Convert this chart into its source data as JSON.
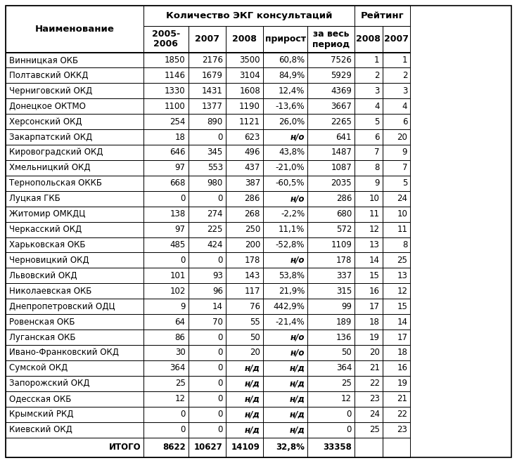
{
  "title_ecg": "Количество ЭКГ консультаций",
  "title_rating": "Рейтинг",
  "col_header_name": "Наименование",
  "col_sub_headers": [
    "2005-\n2006",
    "2007",
    "2008",
    "прирост",
    "за весь\nпериод",
    "2008",
    "2007"
  ],
  "rows": [
    [
      "Винницкая ОКБ",
      "1850",
      "2176",
      "3500",
      "60,8%",
      "7526",
      "1",
      "1"
    ],
    [
      "Полтавский ОККД",
      "1146",
      "1679",
      "3104",
      "84,9%",
      "5929",
      "2",
      "2"
    ],
    [
      "Черниговский ОКД",
      "1330",
      "1431",
      "1608",
      "12,4%",
      "4369",
      "3",
      "3"
    ],
    [
      "Донецкое ОКТМО",
      "1100",
      "1377",
      "1190",
      "-13,6%",
      "3667",
      "4",
      "4"
    ],
    [
      "Херсонский ОКД",
      "254",
      "890",
      "1121",
      "26,0%",
      "2265",
      "5",
      "6"
    ],
    [
      "Закарпатский ОКД",
      "18",
      "0",
      "623",
      "н/о",
      "641",
      "6",
      "20"
    ],
    [
      "Кировоградский ОКД",
      "646",
      "345",
      "496",
      "43,8%",
      "1487",
      "7",
      "9"
    ],
    [
      "Хмельницкий ОКД",
      "97",
      "553",
      "437",
      "-21,0%",
      "1087",
      "8",
      "7"
    ],
    [
      "Тернопольская ОККБ",
      "668",
      "980",
      "387",
      "-60,5%",
      "2035",
      "9",
      "5"
    ],
    [
      "Луцкая ГКБ",
      "0",
      "0",
      "286",
      "н/о",
      "286",
      "10",
      "24"
    ],
    [
      "Житомир ОМКДЦ",
      "138",
      "274",
      "268",
      "-2,2%",
      "680",
      "11",
      "10"
    ],
    [
      "Черкасский ОКД",
      "97",
      "225",
      "250",
      "11,1%",
      "572",
      "12",
      "11"
    ],
    [
      "Харьковская ОКБ",
      "485",
      "424",
      "200",
      "-52,8%",
      "1109",
      "13",
      "8"
    ],
    [
      "Черновицкий ОКД",
      "0",
      "0",
      "178",
      "н/о",
      "178",
      "14",
      "25"
    ],
    [
      "Львовский ОКД",
      "101",
      "93",
      "143",
      "53,8%",
      "337",
      "15",
      "13"
    ],
    [
      "Николаевская ОКБ",
      "102",
      "96",
      "117",
      "21,9%",
      "315",
      "16",
      "12"
    ],
    [
      "Днепропетровский ОДЦ",
      "9",
      "14",
      "76",
      "442,9%",
      "99",
      "17",
      "15"
    ],
    [
      "Ровенская ОКБ",
      "64",
      "70",
      "55",
      "-21,4%",
      "189",
      "18",
      "14"
    ],
    [
      "Луганская ОКБ",
      "86",
      "0",
      "50",
      "н/о",
      "136",
      "19",
      "17"
    ],
    [
      "Ивано-Франковский ОКД",
      "30",
      "0",
      "20",
      "н/о",
      "50",
      "20",
      "18"
    ],
    [
      "Сумской ОКД",
      "364",
      "0",
      "н/д",
      "н/д",
      "364",
      "21",
      "16"
    ],
    [
      "Запорожский ОКД",
      "25",
      "0",
      "н/д",
      "н/д",
      "25",
      "22",
      "19"
    ],
    [
      "Одесская ОКБ",
      "12",
      "0",
      "н/д",
      "н/д",
      "12",
      "23",
      "21"
    ],
    [
      "Крымский РКД",
      "0",
      "0",
      "н/д",
      "н/д",
      "0",
      "24",
      "22"
    ],
    [
      "Киевский ОКД",
      "0",
      "0",
      "н/д",
      "н/д",
      "0",
      "25",
      "23"
    ]
  ],
  "footer": [
    "ИТОГО",
    "8622",
    "10627",
    "14109",
    "32,8%",
    "33358",
    "",
    ""
  ],
  "bold_italic_cells": [
    "н/о",
    "н/д"
  ],
  "bg_color": "#ffffff"
}
